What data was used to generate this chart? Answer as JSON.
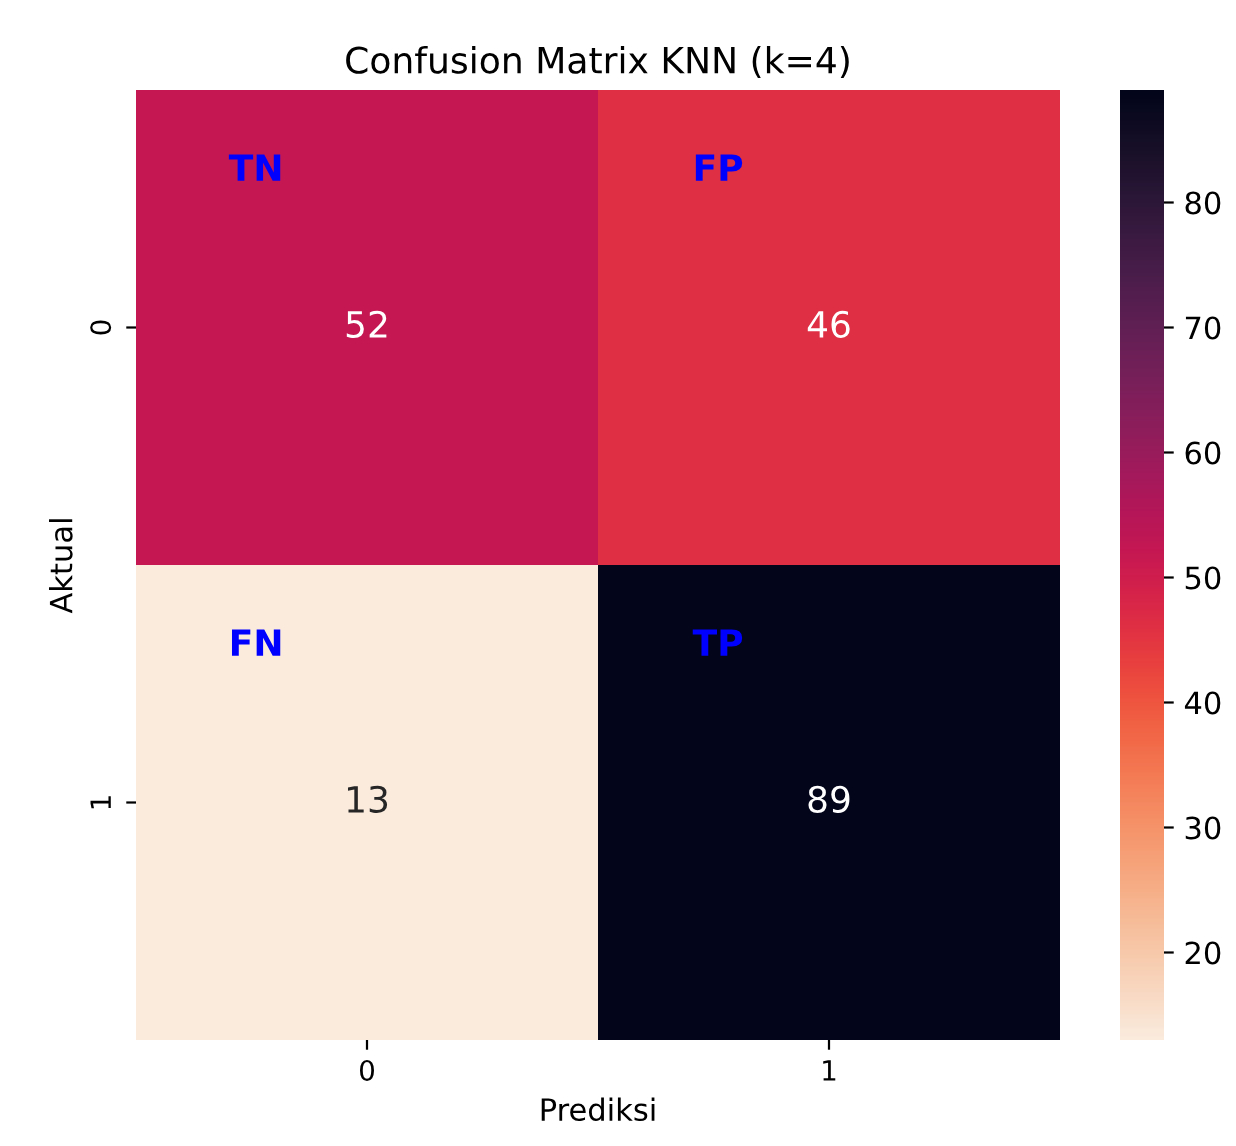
{
  "chart_data": {
    "type": "heatmap",
    "title": "Confusion Matrix KNN (k=4)",
    "xlabel": "Prediksi",
    "ylabel": "Aktual",
    "categories": [
      "0",
      "1"
    ],
    "y_categories": [
      "0",
      "1"
    ],
    "cells": [
      [
        52,
        46
      ],
      [
        13,
        89
      ]
    ],
    "clim": [
      13,
      89
    ],
    "cticks": [
      20,
      30,
      40,
      50,
      60,
      70,
      80
    ],
    "data_labels": true,
    "annotations": [
      "TN",
      "FP",
      "FN",
      "TP"
    ]
  }
}
